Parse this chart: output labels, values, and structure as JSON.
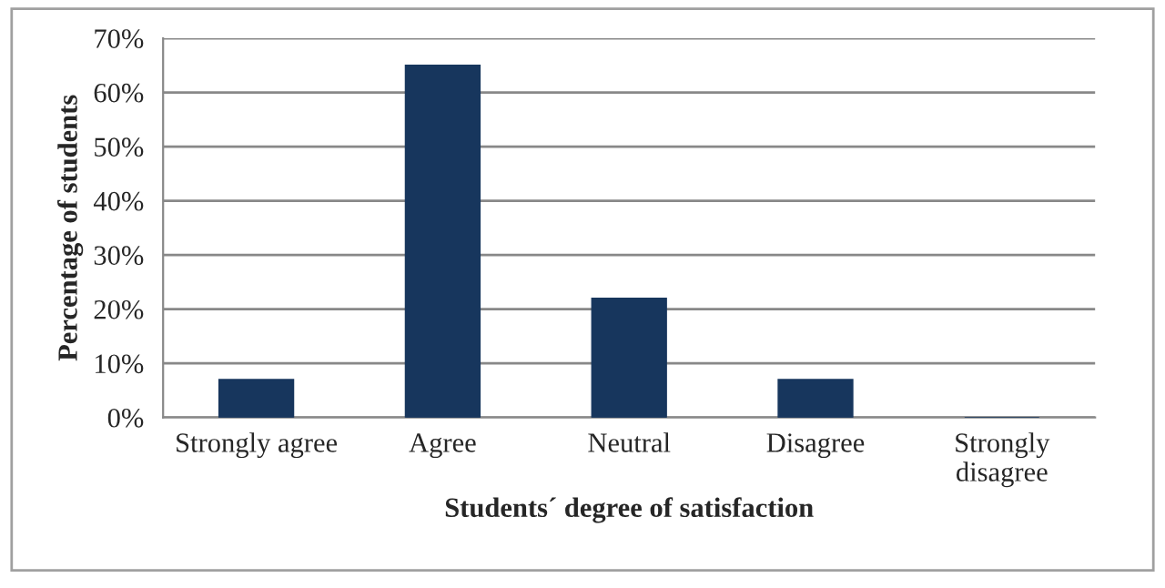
{
  "chart_data": {
    "type": "bar",
    "xlabel": "Students´ degree of satisfaction",
    "ylabel": "Percentage of students",
    "categories": [
      "Strongly agree",
      "Agree",
      "Neutral",
      "Disagree",
      "Strongly\ndisagree"
    ],
    "values": [
      7,
      65,
      22,
      7,
      0
    ],
    "color": "#17365d",
    "ylim": [
      0,
      70
    ],
    "yticks": [
      {
        "value": 0,
        "label": "0%"
      },
      {
        "value": 10,
        "label": "10%"
      },
      {
        "value": 20,
        "label": "20%"
      },
      {
        "value": 30,
        "label": "30%"
      },
      {
        "value": 40,
        "label": "40%"
      },
      {
        "value": 50,
        "label": "50%"
      },
      {
        "value": 60,
        "label": "60%"
      },
      {
        "value": 70,
        "label": "70%"
      }
    ],
    "grid": "y",
    "legend": false
  }
}
